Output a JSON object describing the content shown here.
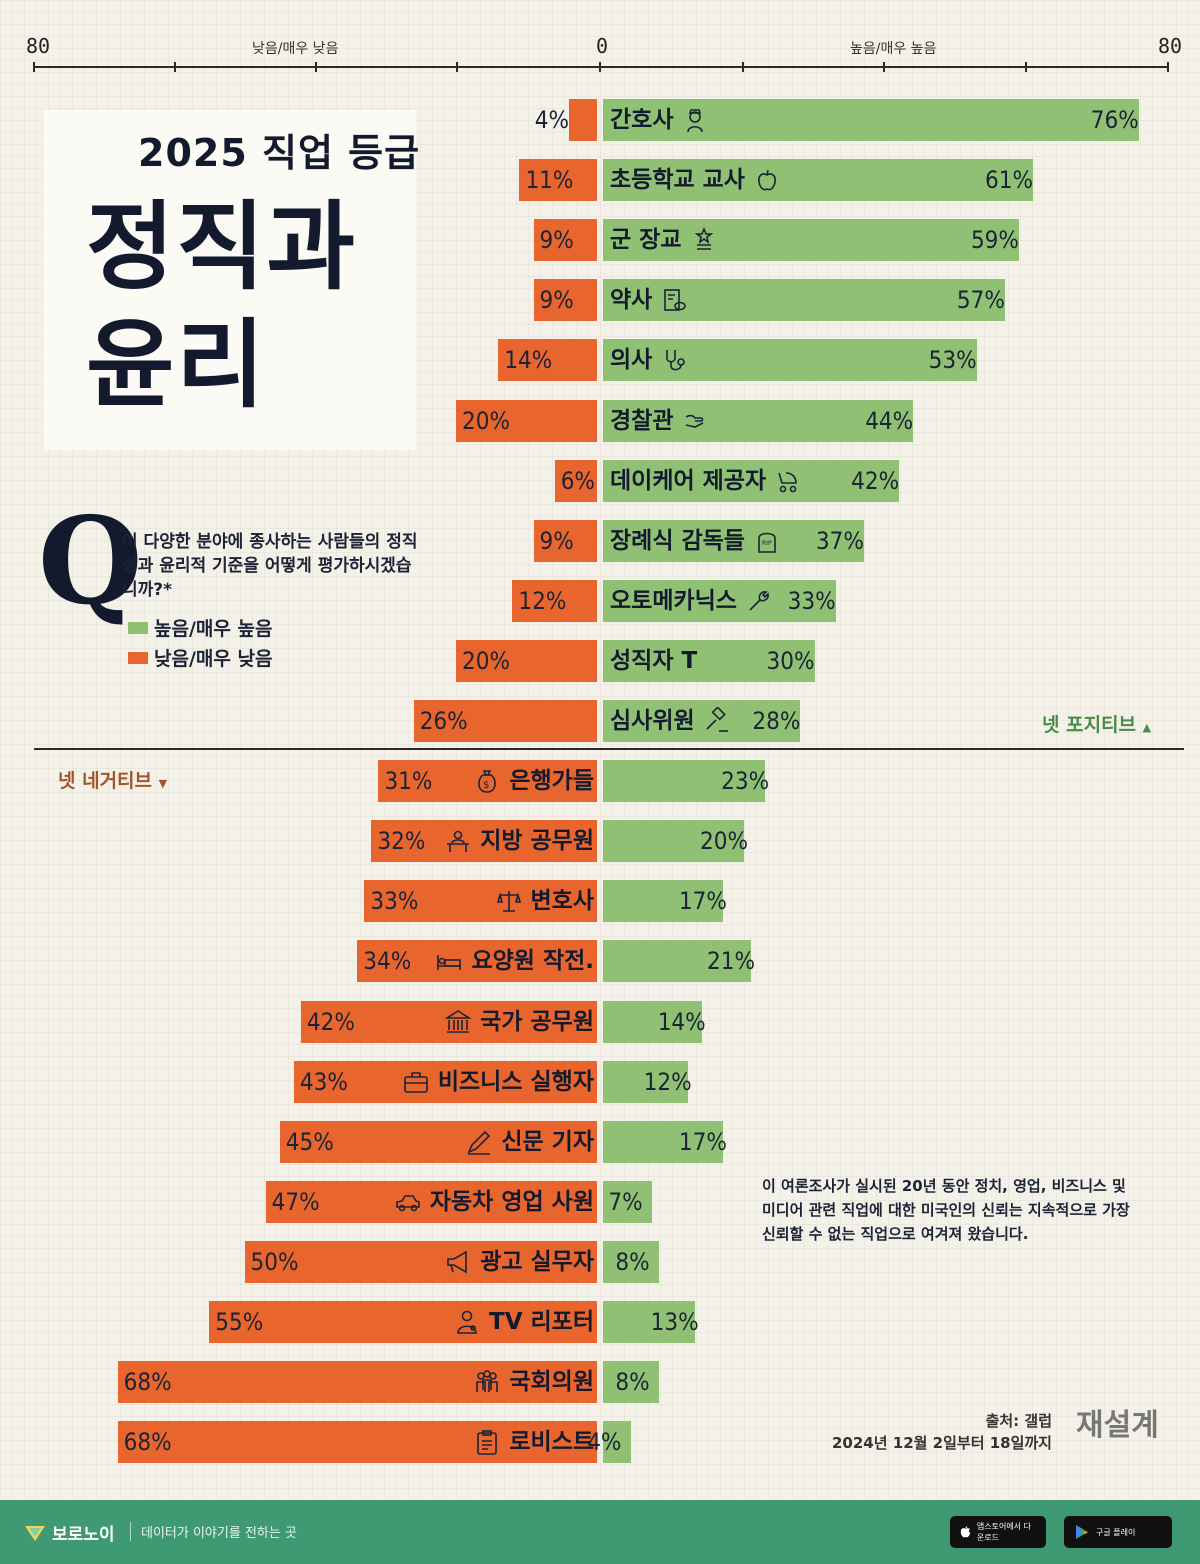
{
  "axis": {
    "left_max": "80",
    "center": "0",
    "right_max": "80",
    "left_caption": "낮음/매우 낮음",
    "right_caption": "높음/매우 높음"
  },
  "header": {
    "year_title": "2025 직업 등급",
    "main_title": "정직과 윤리"
  },
  "question": {
    "mark": "Q",
    "text": "이 다양한 분야에 종사하는 사람들의 정직성과 윤리적 기준을 어떻게 평가하시겠습니까?*"
  },
  "legend": {
    "high": "높음/매우 높음",
    "low": "낮음/매우 낮음"
  },
  "net": {
    "positive": "넷 포지티브",
    "negative": "넷 네거티브"
  },
  "colors": {
    "high": "#8fc073",
    "low": "#e8662d"
  },
  "chart_data": {
    "type": "bar",
    "orientation": "diverging-horizontal",
    "xlim": [
      -80,
      80
    ],
    "categories": [
      "간호사",
      "초등학교 교사",
      "군 장교",
      "약사",
      "의사",
      "경찰관",
      "데이케어 제공자",
      "장례식 감독들",
      "오토메카닉스",
      "성직자 T",
      "심사위원",
      "은행가들",
      "지방 공무원",
      "변호사",
      "요양원 작전.",
      "국가 공무원",
      "비즈니스 실행자",
      "신문 기자",
      "자동차 영업 사원",
      "광고 실무자",
      "TV 리포터",
      "국회의원",
      "로비스트"
    ],
    "icons": [
      "nurse-icon",
      "apple-icon",
      "medal-icon",
      "prescription-icon",
      "stethoscope-icon",
      "heart-hand-icon",
      "stroller-icon",
      "tombstone-icon",
      "wrench-icon",
      "",
      "gavel-icon",
      "money-bag-icon",
      "desk-icon",
      "scales-icon",
      "bed-icon",
      "government-building-icon",
      "briefcase-icon",
      "pen-icon",
      "car-icon",
      "megaphone-icon",
      "reporter-icon",
      "group-icon",
      "clipboard-icon"
    ],
    "series": [
      {
        "name": "높음/매우 높음",
        "values": [
          76,
          61,
          59,
          57,
          53,
          44,
          42,
          37,
          33,
          30,
          28,
          23,
          20,
          17,
          21,
          14,
          12,
          17,
          7,
          8,
          13,
          8,
          4
        ]
      },
      {
        "name": "낮음/매우 낮음",
        "values": [
          4,
          11,
          9,
          9,
          14,
          20,
          6,
          9,
          12,
          20,
          26,
          31,
          32,
          33,
          34,
          42,
          43,
          45,
          47,
          50,
          55,
          68,
          68
        ]
      }
    ],
    "net_split_after_index": 10
  },
  "note": "이 여론조사가 실시된 20년 동안 정치, 영업, 비즈니스 및 미디어 관련 직업에 대한 미국인의 신뢰는 지속적으로 가장 신뢰할 수 없는 직업으로 여겨져 왔습니다.",
  "source": {
    "label": "출처: 갤럽",
    "dates": "2024년 12월 2일부터 18일까지",
    "redesign": "재설계"
  },
  "footer": {
    "brand": "보로노이",
    "tagline": "데이터가 이야기를 전하는 곳",
    "app_store": "앱스토어에서 다운로드",
    "play_store": "구글 플레이"
  }
}
